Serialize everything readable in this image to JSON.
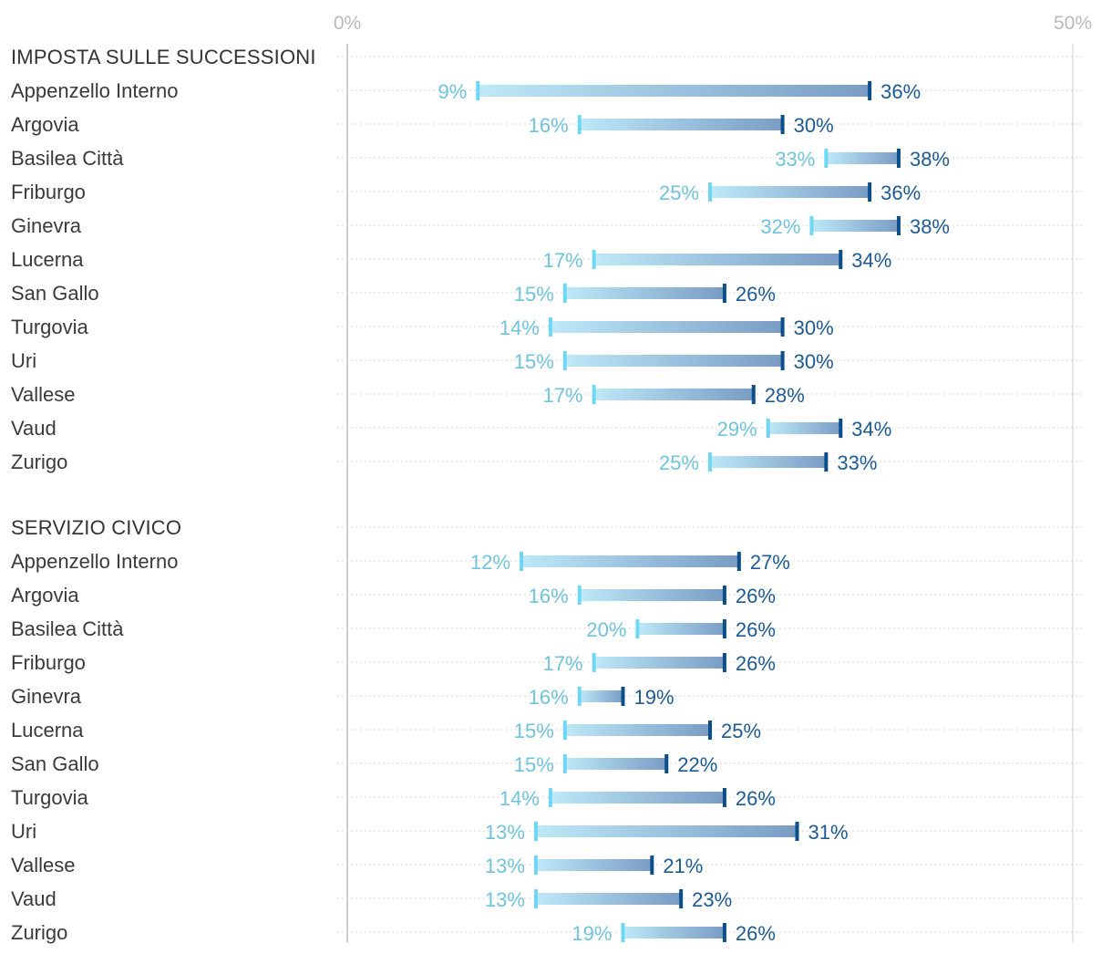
{
  "chart_data": {
    "type": "dumbbell-range",
    "axis": {
      "min": 0,
      "max": 50,
      "ticks": [
        0,
        50
      ],
      "tick_labels": [
        "0%",
        "50%"
      ],
      "unit": "%"
    },
    "colors": {
      "low": "#6fd6f3",
      "high": "#0b4f8a",
      "bar_start": "#bde9f8",
      "bar_end": "#7a9cc4",
      "low_text": "#6fc3dc",
      "high_text": "#1c5a93",
      "grid": "#d4d4d4",
      "axis": "#cccccc"
    },
    "sections": [
      {
        "title": "IMPOSTA SULLE SUCCESSIONI",
        "rows": [
          {
            "label": "Appenzello Interno",
            "low": 9,
            "high": 36
          },
          {
            "label": "Argovia",
            "low": 16,
            "high": 30
          },
          {
            "label": "Basilea Città",
            "low": 33,
            "high": 38
          },
          {
            "label": "Friburgo",
            "low": 25,
            "high": 36
          },
          {
            "label": "Ginevra",
            "low": 32,
            "high": 38
          },
          {
            "label": "Lucerna",
            "low": 17,
            "high": 34
          },
          {
            "label": "San Gallo",
            "low": 15,
            "high": 26
          },
          {
            "label": "Turgovia",
            "low": 14,
            "high": 30
          },
          {
            "label": "Uri",
            "low": 15,
            "high": 30
          },
          {
            "label": "Vallese",
            "low": 17,
            "high": 28
          },
          {
            "label": "Vaud",
            "low": 29,
            "high": 34
          },
          {
            "label": "Zurigo",
            "low": 25,
            "high": 33
          }
        ]
      },
      {
        "title": "SERVIZIO CIVICO",
        "rows": [
          {
            "label": "Appenzello Interno",
            "low": 12,
            "high": 27
          },
          {
            "label": "Argovia",
            "low": 16,
            "high": 26
          },
          {
            "label": "Basilea Città",
            "low": 20,
            "high": 26
          },
          {
            "label": "Friburgo",
            "low": 17,
            "high": 26
          },
          {
            "label": "Ginevra",
            "low": 16,
            "high": 19
          },
          {
            "label": "Lucerna",
            "low": 15,
            "high": 25
          },
          {
            "label": "San Gallo",
            "low": 15,
            "high": 22
          },
          {
            "label": "Turgovia",
            "low": 14,
            "high": 26
          },
          {
            "label": "Uri",
            "low": 13,
            "high": 31
          },
          {
            "label": "Vallese",
            "low": 13,
            "high": 21
          },
          {
            "label": "Vaud",
            "low": 13,
            "high": 23
          },
          {
            "label": "Zurigo",
            "low": 19,
            "high": 26
          }
        ]
      }
    ]
  }
}
